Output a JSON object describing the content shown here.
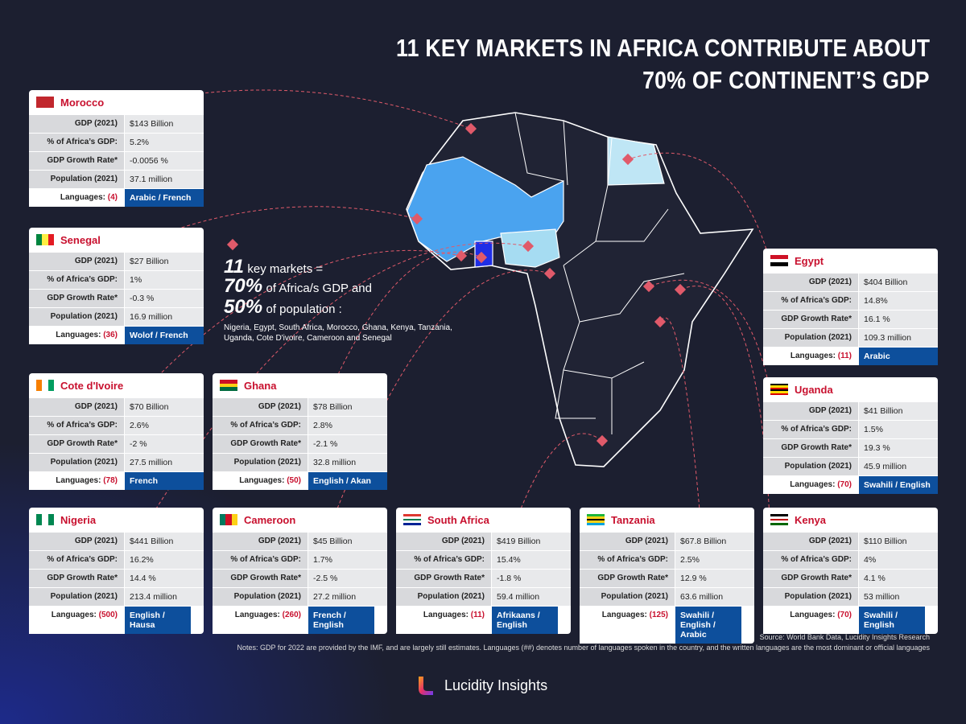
{
  "title": [
    "11 KEY MARKETS IN AFRICA CONTRIBUTE ABOUT",
    "70% OF CONTINENT’S GDP"
  ],
  "summary": {
    "line1_num": "11",
    "line1_text": "key markets =",
    "line2_num": "70%",
    "line2_text": "of Africa/s GDP and",
    "line3_num": "50%",
    "line3_text": "of population :",
    "countries": "Nigeria, Egypt, South Africa, Morocco, Ghana, Kenya, Tanzania, Uganda, Cote D'ivoire, Cameroon and Senegal"
  },
  "row_labels": [
    "GDP (2021)",
    "% of Africa’s GDP:",
    "GDP Growth Rate*",
    "Population (2021)",
    "Languages:"
  ],
  "cards": [
    {
      "name": "Morocco",
      "gdp": "$143 Billion",
      "share": "5.2%",
      "growth": "-0.0056 %",
      "population": "37.1 million",
      "lang_count": "(4)",
      "languages": "Arabic / French"
    },
    {
      "name": "Senegal",
      "gdp": "$27 Billion",
      "share": "1%",
      "growth": "-0.3 %",
      "population": "16.9 million",
      "lang_count": "(36)",
      "languages": "Wolof / French"
    },
    {
      "name": "Cote d'Ivoire",
      "gdp": "$70 Billion",
      "share": "2.6%",
      "growth": "-2 %",
      "population": "27.5 million",
      "lang_count": "(78)",
      "languages": "French"
    },
    {
      "name": "Ghana",
      "gdp": "$78 Billion",
      "share": "2.8%",
      "growth": "-2.1 %",
      "population": "32.8 million",
      "lang_count": "(50)",
      "languages": "English / Akan"
    },
    {
      "name": "Nigeria",
      "gdp": "$441 Billion",
      "share": "16.2%",
      "growth": "14.4 %",
      "population": "213.4 million",
      "lang_count": "(500)",
      "languages": "English / Hausa"
    },
    {
      "name": "Cameroon",
      "gdp": "$45 Billion",
      "share": "1.7%",
      "growth": "-2.5 %",
      "population": "27.2 million",
      "lang_count": "(260)",
      "languages": "French / English"
    },
    {
      "name": "South Africa",
      "gdp": "$419 Billion",
      "share": "15.4%",
      "growth": "-1.8 %",
      "population": "59.4 million",
      "lang_count": "(11)",
      "languages": "Afrikaans / English"
    },
    {
      "name": "Tanzania",
      "gdp": "$67.8 Billion",
      "share": "2.5%",
      "growth": "12.9 %",
      "population": "63.6 million",
      "lang_count": "(125)",
      "languages": "Swahili / English / Arabic"
    },
    {
      "name": "Egypt",
      "gdp": "$404 Billion",
      "share": "14.8%",
      "growth": "16.1 %",
      "population": "109.3 million",
      "lang_count": "(11)",
      "languages": "Arabic"
    },
    {
      "name": "Uganda",
      "gdp": "$41 Billion",
      "share": "1.5%",
      "growth": "19.3 %",
      "population": "45.9 million",
      "lang_count": "(70)",
      "languages": "Swahili / English"
    },
    {
      "name": "Kenya",
      "gdp": "$110 Billion",
      "share": "4%",
      "growth": "4.1 %",
      "population": "53 million",
      "lang_count": "(70)",
      "languages": "Swahili / English"
    }
  ],
  "source": "Source: World Bank Data, Lucidity Insights Research",
  "notes": "Notes: GDP for 2022 are provided by the IMF, and are largely still estimates. Languages (##) denotes number of  languages spoken in the country, and the written languages are the most dominant or official languages",
  "brand": "Lucidity Insights"
}
